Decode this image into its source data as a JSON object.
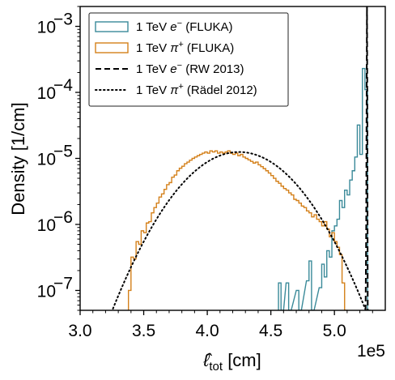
{
  "chart_data": {
    "type": "line",
    "title": "",
    "xlabel": "ℓ̂_tot [cm]",
    "xlabel_main": "ℓ̂",
    "xlabel_sub": "tot",
    "xlabel_unit": "[cm]",
    "ylabel": "Density [1/cm]",
    "x_offset_label": "1e5",
    "xscale": "linear",
    "yscale": "log",
    "xlim": [
      3.0,
      5.4
    ],
    "ylim": [
      5e-08,
      0.002
    ],
    "x_unit_factor": 100000,
    "xticks": [
      3.0,
      3.5,
      4.0,
      4.5,
      5.0
    ],
    "xtick_labels": [
      "3.0",
      "3.5",
      "4.0",
      "4.5",
      "5.0"
    ],
    "yticks": [
      1e-07,
      1e-06,
      1e-05,
      0.0001,
      0.001
    ],
    "ytick_labels": [
      "10",
      "10",
      "10",
      "10",
      "10"
    ],
    "ytick_exponents": [
      "−7",
      "−6",
      "−5",
      "−4",
      "−3"
    ],
    "legend_position": "top-left",
    "grid": false,
    "series": [
      {
        "name": "1 TeV e⁻ (FLUKA)",
        "legend": {
          "prefix": "1 TeV ",
          "sym": "e",
          "sup": "−",
          "suffix": " (FLUKA)"
        },
        "style": "step",
        "color": "#3a8a99",
        "bin_width": 0.02,
        "bins": [
          [
            4.56,
            1.3e-07
          ],
          [
            4.58,
            5e-08
          ],
          [
            4.62,
            1.3e-07
          ],
          [
            4.64,
            5e-08
          ],
          [
            4.7,
            1e-07
          ],
          [
            4.72,
            5e-08
          ],
          [
            4.78,
            1.4e-07
          ],
          [
            4.8,
            2.8e-07
          ],
          [
            4.82,
            5e-08
          ],
          [
            4.88,
            1.1e-07
          ],
          [
            4.9,
            2.5e-07
          ],
          [
            4.92,
            1.6e-07
          ],
          [
            4.94,
            4e-07
          ],
          [
            4.96,
            3.2e-07
          ],
          [
            4.98,
            8e-07
          ],
          [
            5.0,
            9.5e-07
          ],
          [
            5.02,
            1.2e-06
          ],
          [
            5.04,
            2.3e-06
          ],
          [
            5.06,
            1.8e-06
          ],
          [
            5.08,
            3.3e-06
          ],
          [
            5.1,
            2.8e-06
          ],
          [
            5.12,
            4.7e-06
          ],
          [
            5.14,
            6.5e-06
          ],
          [
            5.16,
            1.05e-05
          ],
          [
            5.18,
            3.2e-05
          ],
          [
            5.2,
            1.15e-05
          ],
          [
            5.22,
            0.00023
          ],
          [
            5.24,
            0.00011
          ],
          [
            5.26,
            5e-08
          ]
        ]
      },
      {
        "name": "1 TeV π⁺ (FLUKA)",
        "legend": {
          "prefix": "1 TeV ",
          "sym": "π",
          "sup": "+",
          "suffix": " (FLUKA)"
        },
        "style": "step",
        "color": "#d4801a",
        "bin_width": 0.02,
        "bins": [
          [
            3.38,
            1e-07
          ],
          [
            3.4,
            3.2e-07
          ],
          [
            3.42,
            3e-07
          ],
          [
            3.44,
            5.5e-07
          ],
          [
            3.46,
            5e-07
          ],
          [
            3.48,
            8e-07
          ],
          [
            3.5,
            7.5e-07
          ],
          [
            3.52,
            1.05e-06
          ],
          [
            3.54,
            1.1e-06
          ],
          [
            3.56,
            1.5e-06
          ],
          [
            3.58,
            1.8e-06
          ],
          [
            3.6,
            2.1e-06
          ],
          [
            3.62,
            2.6e-06
          ],
          [
            3.64,
            2.9e-06
          ],
          [
            3.66,
            3.4e-06
          ],
          [
            3.68,
            4e-06
          ],
          [
            3.7,
            4.3e-06
          ],
          [
            3.72,
            5.2e-06
          ],
          [
            3.74,
            5.6e-06
          ],
          [
            3.76,
            6.5e-06
          ],
          [
            3.78,
            7.1e-06
          ],
          [
            3.8,
            7.6e-06
          ],
          [
            3.82,
            8.3e-06
          ],
          [
            3.84,
            8.8e-06
          ],
          [
            3.86,
            9.4e-06
          ],
          [
            3.88,
            1e-05
          ],
          [
            3.9,
            1.05e-05
          ],
          [
            3.92,
            1.1e-05
          ],
          [
            3.94,
            1.15e-05
          ],
          [
            3.96,
            1.2e-05
          ],
          [
            3.98,
            1.25e-05
          ],
          [
            4.0,
            1.2e-05
          ],
          [
            4.02,
            1.3e-05
          ],
          [
            4.04,
            1.25e-05
          ],
          [
            4.06,
            1.3e-05
          ],
          [
            4.08,
            1.2e-05
          ],
          [
            4.1,
            1.25e-05
          ],
          [
            4.12,
            1.2e-05
          ],
          [
            4.14,
            1.25e-05
          ],
          [
            4.16,
            1.3e-05
          ],
          [
            4.18,
            1.2e-05
          ],
          [
            4.2,
            1.15e-05
          ],
          [
            4.22,
            1.2e-05
          ],
          [
            4.24,
            1.1e-05
          ],
          [
            4.26,
            1.15e-05
          ],
          [
            4.28,
            1.05e-05
          ],
          [
            4.3,
            1e-05
          ],
          [
            4.32,
            9.5e-06
          ],
          [
            4.34,
            9e-06
          ],
          [
            4.36,
            8.5e-06
          ],
          [
            4.38,
            8.8e-06
          ],
          [
            4.4,
            8e-06
          ],
          [
            4.42,
            7.5e-06
          ],
          [
            4.44,
            7e-06
          ],
          [
            4.46,
            6.5e-06
          ],
          [
            4.48,
            6e-06
          ],
          [
            4.5,
            5.5e-06
          ],
          [
            4.52,
            5e-06
          ],
          [
            4.54,
            4.5e-06
          ],
          [
            4.56,
            4.2e-06
          ],
          [
            4.58,
            3.8e-06
          ],
          [
            4.6,
            3.5e-06
          ],
          [
            4.62,
            3.3e-06
          ],
          [
            4.64,
            3e-06
          ],
          [
            4.66,
            2.8e-06
          ],
          [
            4.68,
            2.4e-06
          ],
          [
            4.7,
            2.3e-06
          ],
          [
            4.72,
            2.1e-06
          ],
          [
            4.74,
            1.9e-06
          ],
          [
            4.76,
            1.8e-06
          ],
          [
            4.78,
            1.6e-06
          ],
          [
            4.8,
            1.5e-06
          ],
          [
            4.82,
            1.3e-06
          ],
          [
            4.84,
            1.4e-06
          ],
          [
            4.86,
            1.2e-06
          ],
          [
            4.88,
            1.1e-06
          ],
          [
            4.9,
            9.5e-07
          ],
          [
            4.92,
            1.1e-06
          ],
          [
            4.94,
            8.5e-07
          ],
          [
            4.96,
            6.5e-07
          ],
          [
            4.98,
            7.5e-07
          ],
          [
            5.0,
            5.5e-07
          ],
          [
            5.02,
            4.5e-07
          ],
          [
            5.04,
            3.5e-07
          ],
          [
            5.06,
            1.3e-07
          ],
          [
            5.08,
            5e-08
          ]
        ]
      },
      {
        "name": "1 TeV e⁻ (RW 2013)",
        "legend": {
          "prefix": "1 TeV ",
          "sym": "e",
          "sup": "−",
          "suffix": " (RW 2013)"
        },
        "style": "dashed",
        "color": "#000000",
        "x": [
          5.245,
          5.25,
          5.252,
          5.254,
          5.256,
          5.258,
          5.262
        ],
        "y": [
          5e-08,
          1e-06,
          2e-05,
          0.0002,
          0.002,
          0.0002,
          5e-08
        ]
      },
      {
        "name": "1 TeV π⁺ (Rädel 2012)",
        "legend": {
          "prefix": "1 TeV ",
          "sym": "π",
          "sup": "+",
          "suffix": " (Rädel 2012)"
        },
        "style": "dotted",
        "color": "#000000",
        "gaussian": {
          "mu": 4.25,
          "sigma": 0.3,
          "peak": 1.25e-05,
          "x_from": 3.15,
          "x_to": 5.33
        }
      }
    ]
  }
}
